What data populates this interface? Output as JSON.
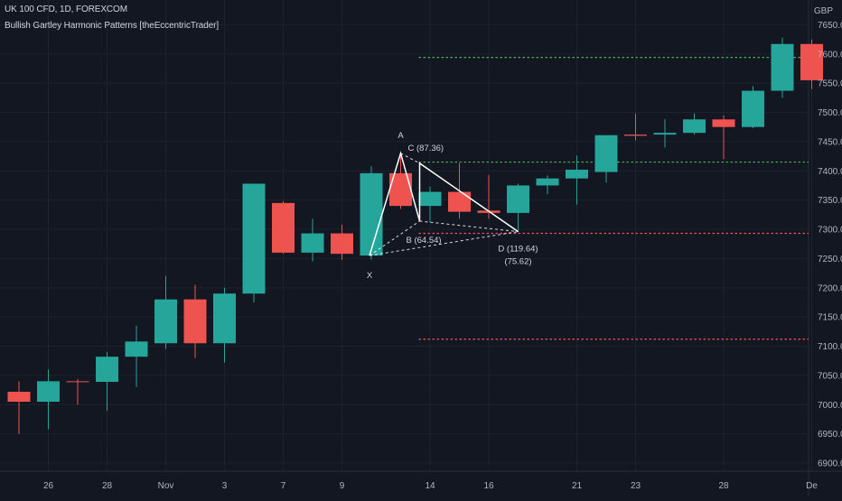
{
  "header": {
    "title": "UK 100 CFD, 1D, FOREXCOM",
    "indicator": "Bullish Gartley Harmonic Patterns [theEccentricTrader]",
    "currency": "GBP"
  },
  "colors": {
    "background": "#131722",
    "bull": "#26a69a",
    "bear": "#ef5350",
    "pattern": "#ffffff",
    "target_line": "#4caf50",
    "stop_line": "#ef5350"
  },
  "chart_data": {
    "type": "candlestick",
    "y_axis": {
      "range": [
        6890,
        7690
      ],
      "ticks": [
        6900,
        6950,
        7000,
        7050,
        7100,
        7150,
        7200,
        7250,
        7300,
        7350,
        7400,
        7450,
        7500,
        7550,
        7600,
        7650
      ],
      "tick_labels": [
        "6900.0",
        "6950.0",
        "7000.0",
        "7050.0",
        "7100.0",
        "7150.0",
        "7200.0",
        "7250.0",
        "7300.0",
        "7350.0",
        "7400.0",
        "7450.0",
        "7500.0",
        "7550.0",
        "7600.0",
        "7650.0"
      ]
    },
    "x_axis": {
      "ticks": [
        {
          "index": 1,
          "label": "26"
        },
        {
          "index": 3,
          "label": "28"
        },
        {
          "index": 5,
          "label": "Nov"
        },
        {
          "index": 7,
          "label": "3"
        },
        {
          "index": 9,
          "label": "7"
        },
        {
          "index": 11,
          "label": "9"
        },
        {
          "index": 14,
          "label": "14"
        },
        {
          "index": 16,
          "label": "16"
        },
        {
          "index": 19,
          "label": "21"
        },
        {
          "index": 21,
          "label": "23"
        },
        {
          "index": 24,
          "label": "28"
        },
        {
          "index": 27,
          "label": "De"
        }
      ]
    },
    "candles": [
      {
        "i": 0,
        "o": 7022,
        "h": 7040,
        "l": 6950,
        "c": 7005
      },
      {
        "i": 1,
        "o": 7005,
        "h": 7060,
        "l": 6958,
        "c": 7040
      },
      {
        "i": 2,
        "o": 7040,
        "h": 7044,
        "l": 7000,
        "c": 7039
      },
      {
        "i": 3,
        "o": 7039,
        "h": 7090,
        "l": 6990,
        "c": 7082
      },
      {
        "i": 4,
        "o": 7082,
        "h": 7135,
        "l": 7030,
        "c": 7108
      },
      {
        "i": 5,
        "o": 7105,
        "h": 7220,
        "l": 7095,
        "c": 7180
      },
      {
        "i": 6,
        "o": 7180,
        "h": 7205,
        "l": 7080,
        "c": 7105
      },
      {
        "i": 7,
        "o": 7105,
        "h": 7200,
        "l": 7072,
        "c": 7190
      },
      {
        "i": 8,
        "o": 7190,
        "h": 7378,
        "l": 7175,
        "c": 7378
      },
      {
        "i": 9,
        "o": 7345,
        "h": 7348,
        "l": 7258,
        "c": 7260
      },
      {
        "i": 10,
        "o": 7260,
        "h": 7318,
        "l": 7245,
        "c": 7293
      },
      {
        "i": 11,
        "o": 7293,
        "h": 7308,
        "l": 7248,
        "c": 7258
      },
      {
        "i": 12,
        "o": 7255,
        "h": 7408,
        "l": 7248,
        "c": 7396
      },
      {
        "i": 13,
        "o": 7396,
        "h": 7430,
        "l": 7335,
        "c": 7340
      },
      {
        "i": 14,
        "o": 7340,
        "h": 7373,
        "l": 7312,
        "c": 7364
      },
      {
        "i": 15,
        "o": 7364,
        "h": 7413,
        "l": 7318,
        "c": 7330
      },
      {
        "i": 16,
        "o": 7332,
        "h": 7393,
        "l": 7318,
        "c": 7328
      },
      {
        "i": 17,
        "o": 7328,
        "h": 7378,
        "l": 7296,
        "c": 7375
      },
      {
        "i": 18,
        "o": 7375,
        "h": 7392,
        "l": 7360,
        "c": 7387
      },
      {
        "i": 19,
        "o": 7387,
        "h": 7426,
        "l": 7342,
        "c": 7402
      },
      {
        "i": 20,
        "o": 7398,
        "h": 7460,
        "l": 7380,
        "c": 7461
      },
      {
        "i": 21,
        "o": 7462,
        "h": 7498,
        "l": 7452,
        "c": 7460
      },
      {
        "i": 22,
        "o": 7462,
        "h": 7488,
        "l": 7440,
        "c": 7465
      },
      {
        "i": 23,
        "o": 7465,
        "h": 7498,
        "l": 7462,
        "c": 7488
      },
      {
        "i": 24,
        "o": 7488,
        "h": 7495,
        "l": 7420,
        "c": 7475
      },
      {
        "i": 25,
        "o": 7475,
        "h": 7545,
        "l": 7473,
        "c": 7537
      },
      {
        "i": 26,
        "o": 7537,
        "h": 7628,
        "l": 7525,
        "c": 7617
      },
      {
        "i": 27,
        "o": 7617,
        "h": 7625,
        "l": 7540,
        "c": 7555
      }
    ],
    "pattern": {
      "name": "Bullish Gartley",
      "points": [
        {
          "label": "X",
          "i": 12,
          "price": 7255
        },
        {
          "label": "A",
          "i": 13,
          "price": 7430
        },
        {
          "label": "B",
          "i": 14,
          "price": 7314
        },
        {
          "label": "C",
          "i": 14,
          "price": 7413
        },
        {
          "label": "D",
          "i": 17,
          "price": 7296
        }
      ],
      "labels": {
        "X": "X",
        "A": "A",
        "B": "B (64.54)",
        "C": "C (87.36)",
        "D": "D (119.64)",
        "D2": "(75.62)"
      }
    },
    "levels": [
      {
        "name": "target-high",
        "price": 7594,
        "style": "green"
      },
      {
        "name": "target-low",
        "price": 7415,
        "style": "green"
      },
      {
        "name": "entry",
        "price": 7293,
        "style": "red"
      },
      {
        "name": "stop",
        "price": 7112,
        "style": "red"
      }
    ]
  }
}
